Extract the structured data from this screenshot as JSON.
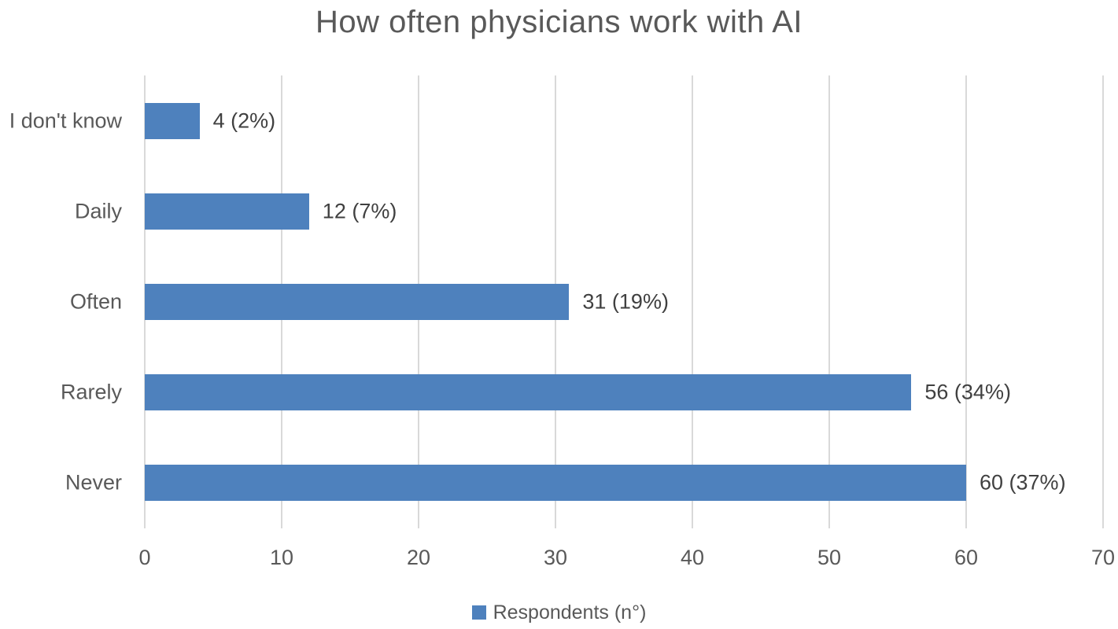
{
  "chart_data": {
    "type": "bar",
    "orientation": "horizontal",
    "title": "How often physicians work with AI",
    "categories": [
      "I don't know",
      "Daily",
      "Often",
      "Rarely",
      "Never"
    ],
    "category_order": "top-to-bottom",
    "values": [
      4,
      12,
      31,
      56,
      60
    ],
    "percents": [
      2,
      7,
      19,
      34,
      37
    ],
    "data_labels": [
      "4 (2%)",
      "12 (7%)",
      "31 (19%)",
      "56 (34%)",
      "60 (37%)"
    ],
    "xlabel": "",
    "ylabel": "",
    "xlim": [
      0,
      70
    ],
    "xticks": [
      0,
      10,
      20,
      30,
      40,
      50,
      60,
      70
    ],
    "grid": "vertical-only",
    "legend": {
      "label": "Respondents (n°)",
      "position": "bottom"
    },
    "colors": {
      "bar": "#4E81BD",
      "gridline": "#D9D9D9",
      "title_text": "#595959",
      "axis_text": "#595959",
      "data_label_text": "#404040",
      "background": "#FFFFFF"
    }
  }
}
